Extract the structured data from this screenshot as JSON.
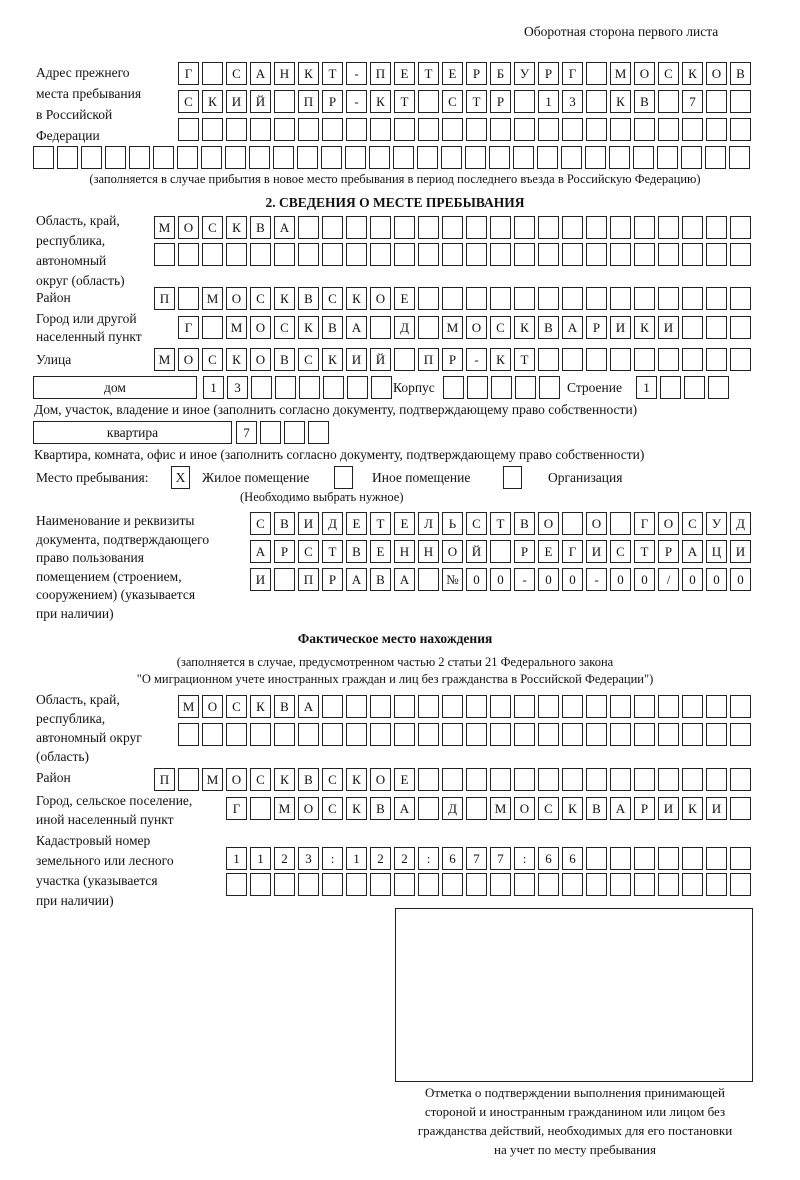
{
  "header": "Оборотная сторона первого листа",
  "previous_address": {
    "label": "Адрес прежнего\nместа пребывания\nв Российской\nФедерации",
    "rows": [
      [
        "Г",
        "",
        "С",
        "А",
        "Н",
        "К",
        "Т",
        "-",
        "П",
        "Е",
        "Т",
        "Е",
        "Р",
        "Б",
        "У",
        "Р",
        "Г",
        "",
        "М",
        "О",
        "С",
        "К",
        "О",
        "В"
      ],
      [
        "С",
        "К",
        "И",
        "Й",
        "",
        "П",
        "Р",
        "-",
        "К",
        "Т",
        "",
        "С",
        "Т",
        "Р",
        "",
        "1",
        "3",
        "",
        "К",
        "В",
        "",
        "7"
      ],
      [],
      []
    ],
    "note": "(заполняется в случае прибытия в новое место пребывания в период последнего въезда в Российскую Федерацию)"
  },
  "section2": {
    "title": "2. СВЕДЕНИЯ О МЕСТЕ ПРЕБЫВАНИЯ",
    "region_label": "Область, край,\nреспублика,\nавтономный\nокруг (область)",
    "region_rows": [
      [
        "М",
        "О",
        "С",
        "К",
        "В",
        "А"
      ],
      []
    ],
    "district_label": "Район",
    "district": [
      "П",
      "",
      "М",
      "О",
      "С",
      "К",
      "В",
      "С",
      "К",
      "О",
      "Е"
    ],
    "city_label": "Город или другой\nнаселенный пункт",
    "city": [
      "Г",
      "",
      "М",
      "О",
      "С",
      "К",
      "В",
      "А",
      "",
      "Д",
      "",
      "М",
      "О",
      "С",
      "К",
      "В",
      "А",
      "Р",
      "И",
      "К",
      "И"
    ],
    "street_label": "Улица",
    "street": [
      "М",
      "О",
      "С",
      "К",
      "О",
      "В",
      "С",
      "К",
      "И",
      "Й",
      "",
      "П",
      "Р",
      "-",
      "К",
      "Т"
    ],
    "house_type": "дом",
    "house": [
      "1",
      "3"
    ],
    "korpus_label": "Корпус",
    "korpus": [],
    "building_label": "Строение",
    "building": [
      "1"
    ],
    "house_note": "Дом, участок, владение и иное (заполнить согласно документу, подтверждающему право собственности)",
    "flat_type": "квартира",
    "flat": [
      "7"
    ],
    "flat_note": "Квартира, комната, офис и иное (заполнить согласно документу, подтверждающему право собственности)",
    "place_label": "Место пребывания:",
    "place_options": [
      {
        "label": "Жилое помещение",
        "mark": "X",
        "checked": true
      },
      {
        "label": "Иное помещение",
        "mark": "",
        "checked": false
      },
      {
        "label": "Организация",
        "mark": "",
        "checked": false
      }
    ],
    "place_note": "(Необходимо выбрать нужное)",
    "doc_label": "Наименование и реквизиты\nдокумента, подтверждающего\nправо пользования\nпомещением (строением,\nсооружением) (указывается\nпри наличии)",
    "doc_rows": [
      [
        "С",
        "В",
        "И",
        "Д",
        "Е",
        "Т",
        "Е",
        "Л",
        "Ь",
        "С",
        "Т",
        "В",
        "О",
        "",
        "О",
        "",
        "Г",
        "О",
        "С",
        "У",
        "Д"
      ],
      [
        "А",
        "Р",
        "С",
        "Т",
        "В",
        "Е",
        "Н",
        "Н",
        "О",
        "Й",
        "",
        "Р",
        "Е",
        "Г",
        "И",
        "С",
        "Т",
        "Р",
        "А",
        "Ц",
        "И"
      ],
      [
        "И",
        "",
        "П",
        "Р",
        "А",
        "В",
        "А",
        "",
        "№",
        "0",
        "0",
        "-",
        "0",
        "0",
        "-",
        "0",
        "0",
        "/",
        "0",
        "0",
        "0"
      ]
    ]
  },
  "actual": {
    "title": "Фактическое место нахождения",
    "note": "(заполняется в случае, предусмотренном частью 2 статьи 21 Федерального закона\n\"О миграционном учете иностранных граждан и лиц без гражданства в Российской Федерации\")",
    "region_label": "Область, край,\nреспублика,\nавтономный округ\n(область)",
    "region_rows": [
      [
        "М",
        "О",
        "С",
        "К",
        "В",
        "А"
      ],
      []
    ],
    "district_label": "Район",
    "district": [
      "П",
      "",
      "М",
      "О",
      "С",
      "К",
      "В",
      "С",
      "К",
      "О",
      "Е"
    ],
    "city_label": "Город, сельское поселение,\nиной населенный пункт",
    "city": [
      "Г",
      "",
      "М",
      "О",
      "С",
      "К",
      "В",
      "А",
      "",
      "Д",
      "",
      "М",
      "О",
      "С",
      "К",
      "В",
      "А",
      "Р",
      "И",
      "К",
      "И"
    ],
    "cadastral_label": "Кадастровый номер\nземельного или лесного\nучастка (указывается\nпри наличии)",
    "cadastral_rows": [
      [
        "1",
        "1",
        "2",
        "3",
        ":",
        "1",
        "2",
        "2",
        ":",
        "6",
        "7",
        "7",
        ":",
        "6",
        "6"
      ],
      []
    ]
  },
  "stamp_caption": "Отметка о подтверждении выполнения принимающей\nстороной и иностранным гражданином или лицом без\nгражданства действий, необходимых для его постановки\nна учет по месту пребывания"
}
